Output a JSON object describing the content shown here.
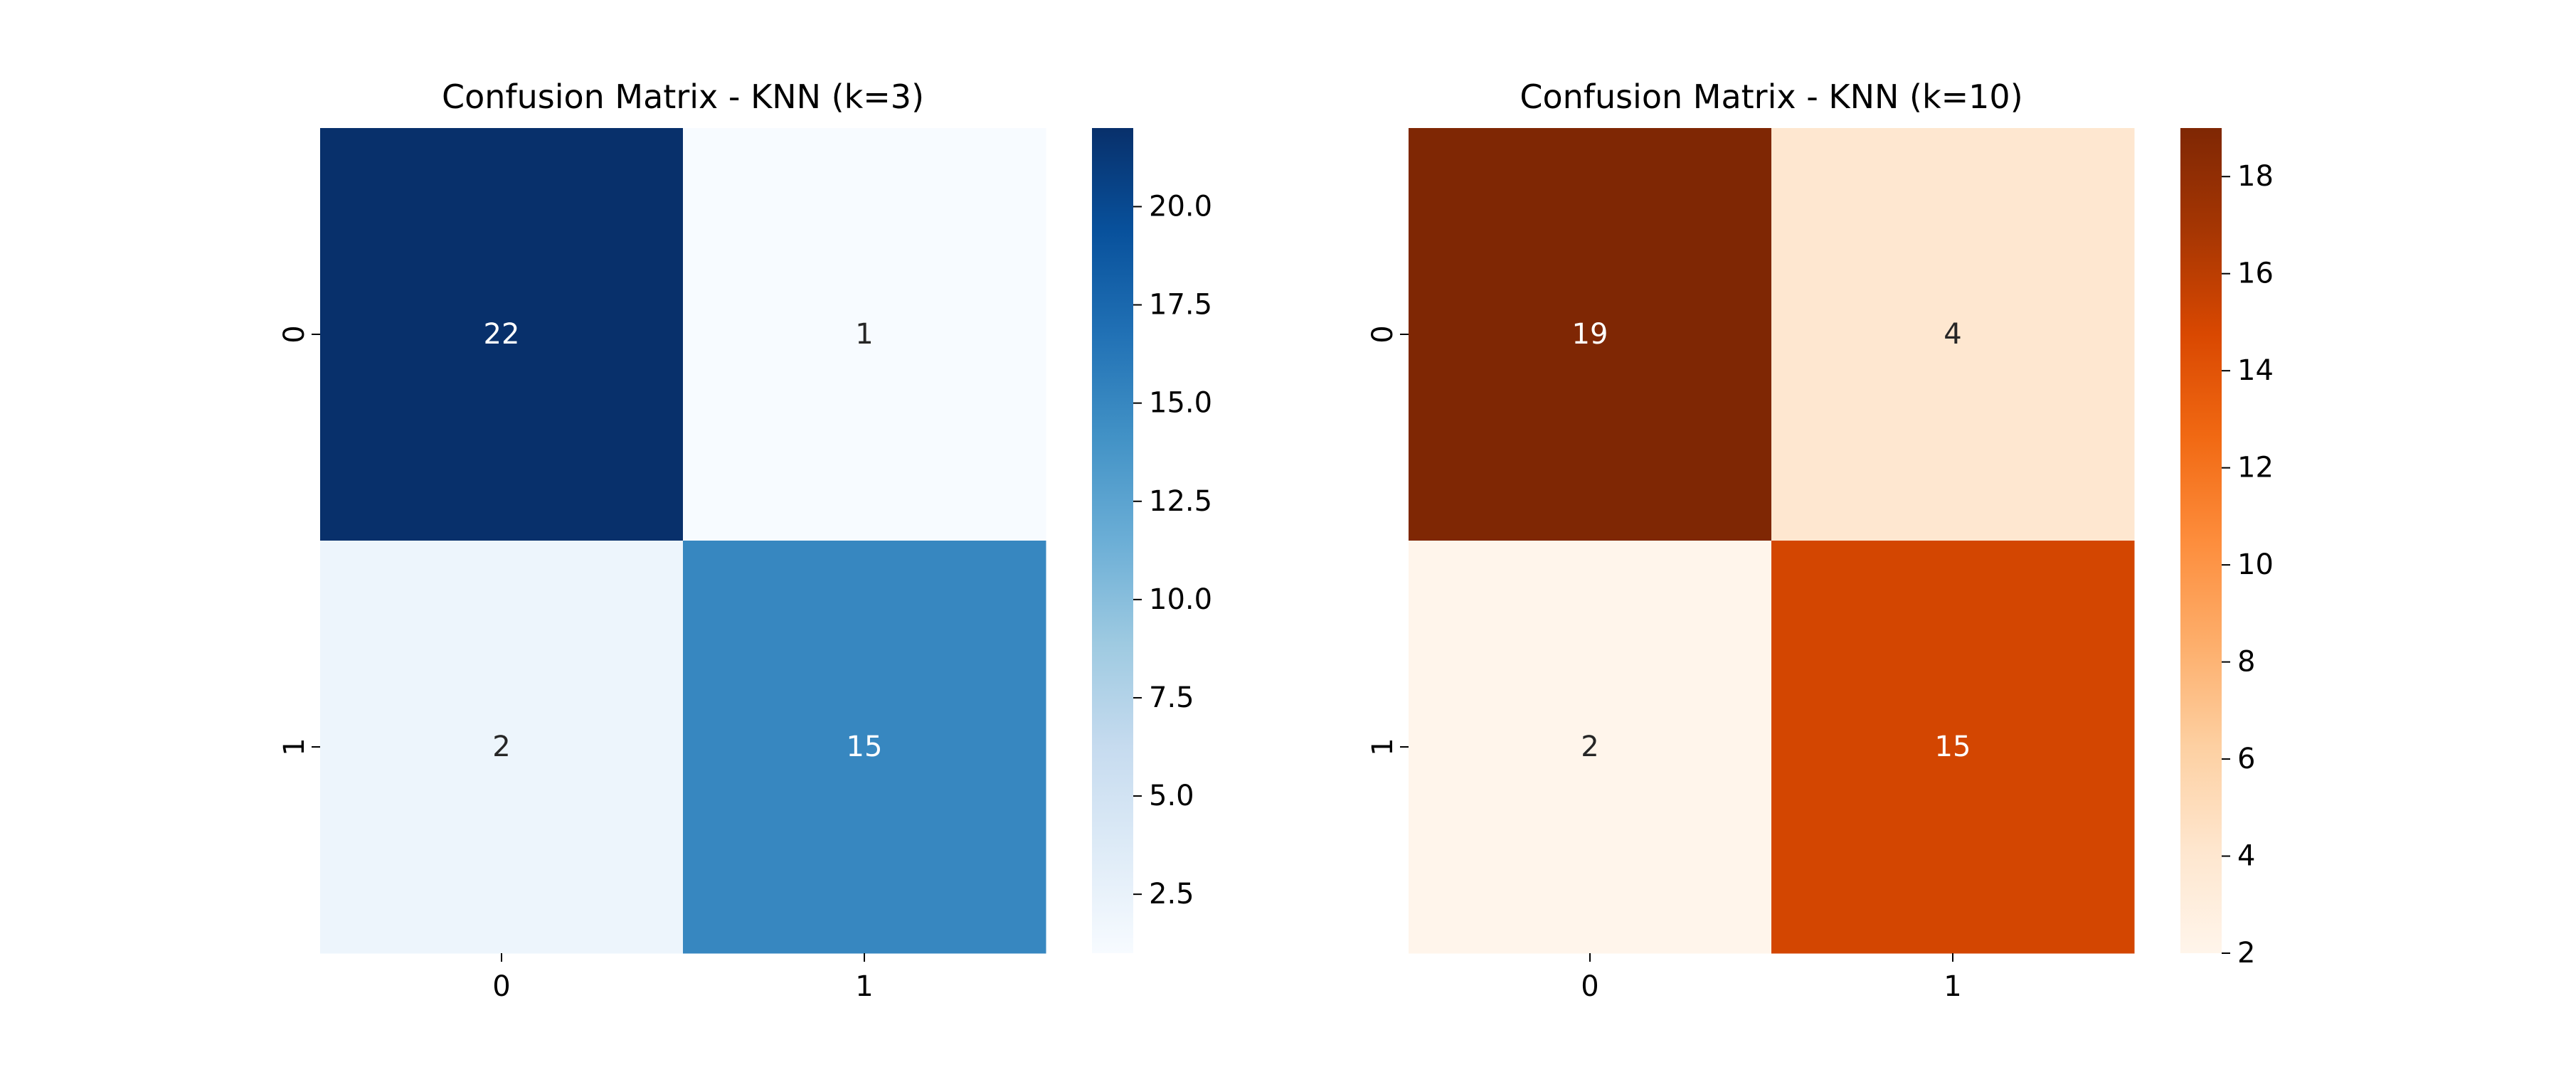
{
  "chart_data": [
    {
      "type": "heatmap",
      "title": "Confusion Matrix - KNN (k=3)",
      "x_categories": [
        "0",
        "1"
      ],
      "y_categories": [
        "0",
        "1"
      ],
      "values": [
        [
          22,
          1
        ],
        [
          2,
          15
        ]
      ],
      "cmap": "Blues",
      "color_range": [
        1,
        22
      ],
      "colorbar_ticks": [
        2.5,
        5.0,
        7.5,
        10.0,
        12.5,
        15.0,
        17.5,
        20.0
      ],
      "colorbar_tick_labels": [
        "2.5",
        "5.0",
        "7.5",
        "10.0",
        "12.5",
        "15.0",
        "17.5",
        "20.0"
      ],
      "xlabel": "",
      "ylabel": ""
    },
    {
      "type": "heatmap",
      "title": "Confusion Matrix - KNN (k=10)",
      "x_categories": [
        "0",
        "1"
      ],
      "y_categories": [
        "0",
        "1"
      ],
      "values": [
        [
          19,
          4
        ],
        [
          2,
          15
        ]
      ],
      "cmap": "Oranges",
      "color_range": [
        2,
        19
      ],
      "colorbar_ticks": [
        2,
        4,
        6,
        8,
        10,
        12,
        14,
        16,
        18
      ],
      "colorbar_tick_labels": [
        "2",
        "4",
        "6",
        "8",
        "10",
        "12",
        "14",
        "16",
        "18"
      ],
      "xlabel": "",
      "ylabel": ""
    }
  ],
  "colormaps": {
    "Blues": [
      "#f7fbff",
      "#deebf7",
      "#c6dbef",
      "#9ecae1",
      "#6baed6",
      "#4292c6",
      "#2171b5",
      "#08519c",
      "#08306b"
    ],
    "Oranges": [
      "#fff5eb",
      "#fee6ce",
      "#fdd0a2",
      "#fdae6b",
      "#fd8d3c",
      "#f16913",
      "#d94801",
      "#a63603",
      "#7f2704"
    ]
  }
}
